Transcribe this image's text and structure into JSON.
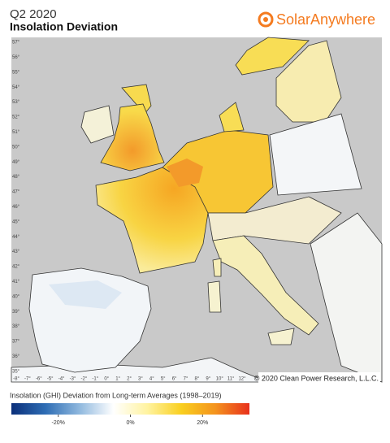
{
  "header": {
    "title": "Q2 2020",
    "subtitle": "Insolation Deviation",
    "brand": "SolarAnywhere"
  },
  "map": {
    "latitude_labels": [
      "57°",
      "56°",
      "55°",
      "54°",
      "53°",
      "52°",
      "51°",
      "50°",
      "49°",
      "48°",
      "47°",
      "46°",
      "45°",
      "44°",
      "43°",
      "42°",
      "41°",
      "40°",
      "39°",
      "38°",
      "37°",
      "36°",
      "35°"
    ],
    "longitude_labels": [
      "-8°",
      "-7°",
      "-6°",
      "-5°",
      "-4°",
      "-3°",
      "-2°",
      "-1°",
      "0°",
      "1°",
      "2°",
      "3°",
      "4°",
      "5°",
      "6°",
      "7°",
      "8°",
      "9°",
      "10°",
      "11°",
      "12°"
    ],
    "copyright": "© 2020 Clean Power Research, L.L.C."
  },
  "legend": {
    "title": "Insolation (GHI) Deviation from Long-term Averages (1998–2019)",
    "range": [
      -33,
      33
    ],
    "colors": [
      "#0b2f7a",
      "#2e6db4",
      "#8fb8de",
      "#ffffff",
      "#fff3a0",
      "#f9cf1f",
      "#f4931e",
      "#e8301c"
    ],
    "ticks": [
      {
        "value": -20,
        "label": "-20%"
      },
      {
        "value": 0,
        "label": "0%"
      },
      {
        "value": 20,
        "label": "20%"
      }
    ]
  }
}
